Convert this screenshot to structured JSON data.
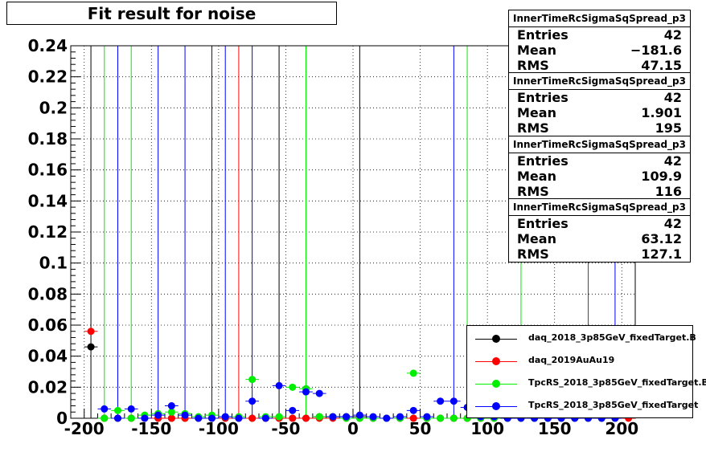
{
  "title": "Fit result for noise",
  "chart_data": {
    "type": "scatter",
    "title": "Fit result for noise",
    "xlabel": "",
    "ylabel": "",
    "xlim": [
      -210,
      210
    ],
    "ylim": [
      0,
      0.24
    ],
    "grid": true,
    "x_ticks": [
      "-200",
      "-150",
      "-100",
      "-50",
      "0",
      "50",
      "100",
      "150",
      "200"
    ],
    "x_tick_values": [
      -200,
      -150,
      -100,
      -50,
      0,
      50,
      100,
      150,
      200
    ],
    "y_ticks": [
      "0",
      "0.02",
      "0.04",
      "0.06",
      "0.08",
      "0.1",
      "0.12",
      "0.14",
      "0.16",
      "0.18",
      "0.2",
      "0.22",
      "0.24"
    ],
    "y_tick_values": [
      0,
      0.02,
      0.04,
      0.06,
      0.08,
      0.1,
      0.12,
      0.14,
      0.16,
      0.18,
      0.2,
      0.22,
      0.24
    ],
    "legend_position": "bottom-right",
    "series": [
      {
        "name": "daq_2018_3p85GeV_fixedTarget.B",
        "color": "#000000",
        "x": [
          -195,
          -185,
          -175,
          -165,
          -155,
          -145,
          -135,
          -125,
          -115,
          -105,
          -95,
          -85,
          -75,
          -65,
          -55,
          -45,
          -35,
          -25,
          -15,
          -5,
          5,
          15,
          25,
          35,
          45,
          55,
          65,
          75,
          85,
          95,
          105,
          115,
          125,
          135,
          145,
          155,
          165,
          175,
          185,
          195
        ],
        "y": [
          0.046,
          0,
          0,
          0,
          0,
          0,
          0,
          0,
          0,
          0,
          0,
          0,
          0,
          0,
          0,
          0,
          0,
          0.001,
          0.001,
          0.001,
          0.001,
          0,
          0,
          0,
          0,
          0,
          0,
          0,
          0,
          0,
          0,
          0,
          0,
          0,
          0,
          0,
          0,
          0,
          0,
          0
        ],
        "spikes_x": [
          -195,
          -55,
          5
        ]
      },
      {
        "name": "daq_2019AuAu19",
        "color": "#ff0000",
        "x": [
          -195,
          -185,
          -175,
          -165,
          -155,
          -145,
          -135,
          -125,
          -115,
          -105,
          -95,
          -85,
          -75,
          -65,
          -55,
          -45,
          -35,
          -25,
          -15,
          -5,
          5,
          15,
          25,
          35,
          45,
          55,
          65,
          75,
          85,
          95,
          105,
          115,
          125,
          135,
          145,
          155,
          165,
          175,
          185,
          195,
          205
        ],
        "y": [
          0.056,
          0,
          0,
          0,
          0,
          0,
          0,
          0,
          0,
          0,
          0,
          0,
          0,
          0,
          0,
          0,
          0,
          0,
          0,
          0,
          0,
          0,
          0,
          0,
          0,
          0,
          0,
          0,
          0,
          0,
          0,
          0,
          0,
          0,
          0,
          0,
          0,
          0,
          0,
          0,
          0
        ],
        "spikes_x": [
          -85,
          175
        ]
      },
      {
        "name": "TpcRS_2018_3p85GeV_fixedTarget.B",
        "color": "#00ee00",
        "x": [
          -185,
          -175,
          -165,
          -155,
          -145,
          -135,
          -125,
          -115,
          -105,
          -95,
          -85,
          -75,
          -65,
          -55,
          -45,
          -35,
          -25,
          -15,
          -5,
          5,
          15,
          25,
          35,
          45,
          55,
          65,
          75,
          85,
          95,
          105,
          115,
          125,
          135,
          145,
          155,
          165,
          175,
          185,
          195
        ],
        "y": [
          0,
          0.005,
          0,
          0.002,
          0.003,
          0.004,
          0.003,
          0.001,
          0.002,
          0.001,
          0.001,
          0.025,
          0.001,
          0.001,
          0.02,
          0.019,
          0.001,
          0.001,
          0,
          0,
          0,
          0,
          0,
          0.029,
          0,
          0,
          0,
          0,
          0,
          0,
          0,
          0,
          0,
          0,
          0,
          0,
          0,
          0,
          0
        ],
        "spikes_x": [
          -185,
          -165,
          -35,
          85,
          125
        ]
      },
      {
        "name": "TpcRS_2018_3p85GeV_fixedTarget",
        "color": "#0000ff",
        "x": [
          -185,
          -175,
          -165,
          -155,
          -145,
          -135,
          -125,
          -115,
          -105,
          -95,
          -85,
          -75,
          -65,
          -55,
          -45,
          -35,
          -25,
          -15,
          -5,
          5,
          15,
          25,
          35,
          45,
          55,
          65,
          75,
          85,
          95,
          105,
          115,
          125,
          135,
          145,
          155,
          165,
          175,
          185,
          195
        ],
        "y": [
          0.006,
          0,
          0.006,
          0,
          0.002,
          0.008,
          0.002,
          0,
          0,
          0.001,
          0,
          0.011,
          0,
          0.021,
          0.005,
          0.017,
          0.016,
          0.001,
          0.001,
          0.002,
          0.001,
          0,
          0.001,
          0.005,
          0.001,
          0.011,
          0.011,
          0.007,
          0.001,
          0.001,
          0,
          0,
          0,
          0,
          0,
          0,
          0,
          0,
          0
        ],
        "spikes_x": [
          -175,
          -145,
          -125,
          -105,
          -95,
          -75,
          75,
          195
        ]
      }
    ]
  },
  "stats": [
    {
      "title": "InnerTimeRcSigmaSqSpread_p3",
      "rows": [
        {
          "label": "Entries",
          "value": "42"
        },
        {
          "label": "Mean",
          "value": "−181.6"
        },
        {
          "label": "RMS",
          "value": "47.15"
        }
      ]
    },
    {
      "title": "InnerTimeRcSigmaSqSpread_p3",
      "rows": [
        {
          "label": "Entries",
          "value": "42"
        },
        {
          "label": "Mean",
          "value": "1.901"
        },
        {
          "label": "RMS",
          "value": "195"
        }
      ]
    },
    {
      "title": "InnerTimeRcSigmaSqSpread_p3",
      "rows": [
        {
          "label": "Entries",
          "value": "42"
        },
        {
          "label": "Mean",
          "value": "109.9"
        },
        {
          "label": "RMS",
          "value": "116"
        }
      ]
    },
    {
      "title": "InnerTimeRcSigmaSqSpread_p3",
      "rows": [
        {
          "label": "Entries",
          "value": "42"
        },
        {
          "label": "Mean",
          "value": "63.12"
        },
        {
          "label": "RMS",
          "value": "127.1"
        }
      ]
    }
  ]
}
